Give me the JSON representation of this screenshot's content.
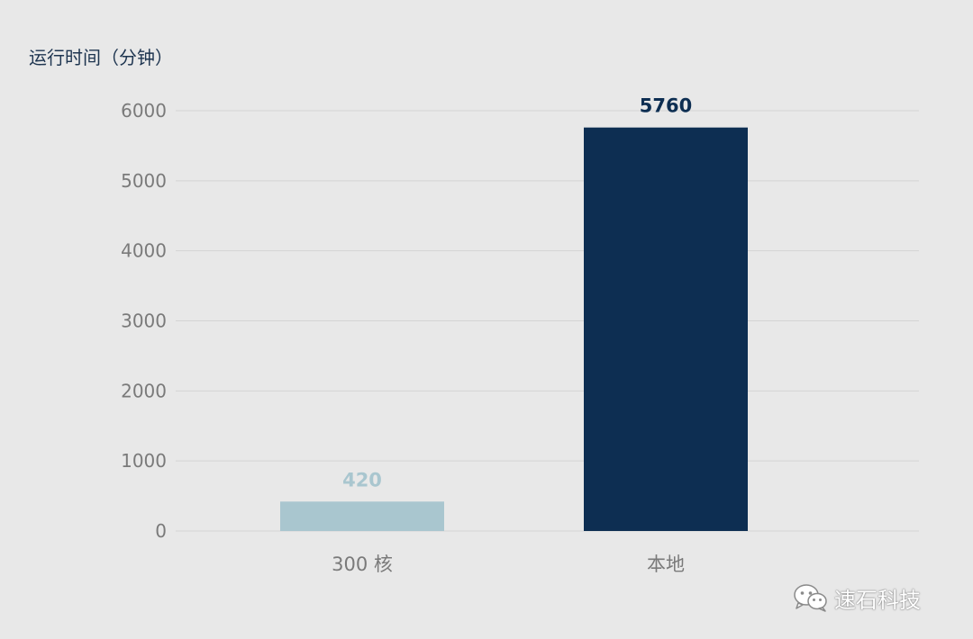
{
  "chart_data": {
    "type": "bar",
    "ylabel": "运行时间（分钟）",
    "categories": [
      "300 核",
      "本地"
    ],
    "values": [
      420,
      5760
    ],
    "ylim": [
      0,
      6000
    ],
    "yticks": [
      0,
      1000,
      2000,
      3000,
      4000,
      5000,
      6000
    ],
    "grid": true,
    "colors": [
      "#a9c6cf",
      "#0d2e52"
    ],
    "label_colors": [
      "#a9c6cf",
      "#0d2e52"
    ]
  },
  "watermark": {
    "text": "速石科技",
    "icon": "wechat-icon"
  },
  "colors": {
    "background": "#e8e8e8",
    "gridline": "#d4d4d4",
    "tick_text": "#7a7a7a",
    "title_text": "#1e3550"
  }
}
